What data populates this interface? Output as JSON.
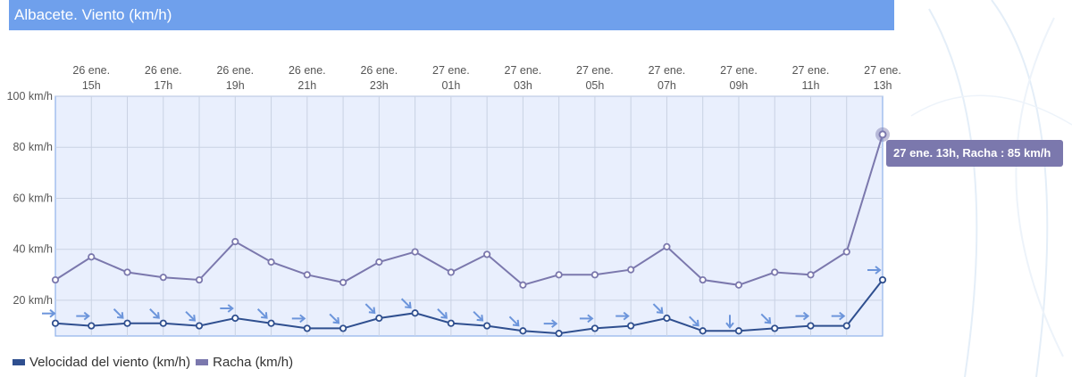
{
  "title": "Albacete. Viento (km/h)",
  "colors": {
    "title_bg": "#6fa0ec",
    "plot_bg": "#e9effd",
    "grid": "#c9d2e3",
    "axis": "#8fb2ea",
    "wind": "#2f4f8f",
    "gust": "#7b78ad",
    "arrow": "#6c95db"
  },
  "tooltip": "27 ene. 13h, Racha : 85 km/h",
  "legend": [
    {
      "label": "Velocidad del viento (km/h)",
      "color": "#2f4f8f"
    },
    {
      "label": "Racha (km/h)",
      "color": "#7b78ad"
    }
  ],
  "chart_data": {
    "type": "line",
    "title": "Albacete. Viento (km/h)",
    "x_tick_labels": [
      [
        "26 ene.",
        "15h"
      ],
      [
        "26 ene.",
        "17h"
      ],
      [
        "26 ene.",
        "19h"
      ],
      [
        "26 ene.",
        "21h"
      ],
      [
        "26 ene.",
        "23h"
      ],
      [
        "27 ene.",
        "01h"
      ],
      [
        "27 ene.",
        "03h"
      ],
      [
        "27 ene.",
        "05h"
      ],
      [
        "27 ene.",
        "07h"
      ],
      [
        "27 ene.",
        "09h"
      ],
      [
        "27 ene.",
        "11h"
      ],
      [
        "27 ene.",
        "13h"
      ]
    ],
    "y_tick_labels": [
      "20 km/h",
      "40 km/h",
      "60 km/h",
      "80 km/h",
      "100 km/h"
    ],
    "ylim": [
      6,
      100
    ],
    "x_hours": [
      "14h",
      "15h",
      "16h",
      "17h",
      "18h",
      "19h",
      "20h",
      "21h",
      "22h",
      "23h",
      "00h",
      "01h",
      "02h",
      "03h",
      "04h",
      "05h",
      "06h",
      "07h",
      "08h",
      "09h",
      "10h",
      "11h",
      "12h",
      "13h"
    ],
    "series": [
      {
        "name": "Velocidad del viento (km/h)",
        "values": [
          11,
          10,
          11,
          11,
          10,
          13,
          11,
          9,
          9,
          13,
          15,
          11,
          10,
          8,
          7,
          9,
          10,
          13,
          8,
          8,
          9,
          10,
          10,
          28
        ]
      },
      {
        "name": "Racha (km/h)",
        "values": [
          28,
          37,
          31,
          29,
          28,
          43,
          35,
          30,
          27,
          35,
          39,
          31,
          38,
          26,
          30,
          30,
          32,
          41,
          28,
          26,
          31,
          30,
          39,
          85
        ]
      }
    ],
    "wind_direction_arrows_deg": [
      90,
      90,
      45,
      45,
      45,
      90,
      45,
      90,
      45,
      45,
      45,
      45,
      45,
      45,
      90,
      90,
      90,
      45,
      45,
      0,
      45,
      90,
      90,
      90
    ],
    "highlighted_point": {
      "series": "Racha (km/h)",
      "x": "13h",
      "y": 85
    },
    "grid": true,
    "legend_position": "bottom-left"
  }
}
